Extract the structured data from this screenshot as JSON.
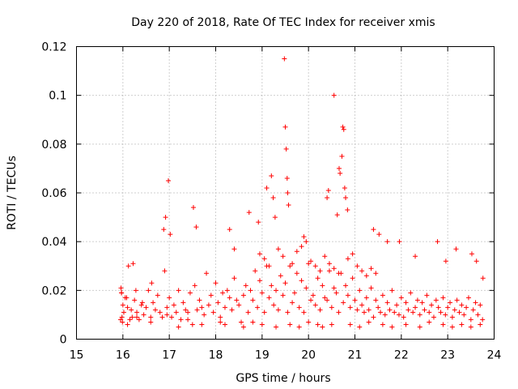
{
  "chart_data": {
    "type": "scatter",
    "title": "Day 220 of 2018, Rate Of TEC Index for receiver xmis",
    "xlabel": "GPS time / hours",
    "ylabel": "ROTI / TECUs",
    "xlim": [
      15,
      24
    ],
    "ylim": [
      0,
      0.12
    ],
    "xticks": [
      "15",
      "16",
      "17",
      "18",
      "19",
      "20",
      "21",
      "22",
      "23",
      "24"
    ],
    "yticks": [
      "0",
      "0.02",
      "0.04",
      "0.06",
      "0.08",
      "0.1",
      "0.12"
    ],
    "grid": true,
    "marker": "+",
    "color": "#ff0000",
    "series": [
      {
        "name": "ROTI",
        "x": [
          15.95,
          15.96,
          15.97,
          15.98,
          15.99,
          16.0,
          16.02,
          16.05,
          16.1,
          16.12,
          16.15,
          16.18,
          16.2,
          16.25,
          16.3,
          16.35,
          16.4,
          16.45,
          16.5,
          16.55,
          16.6,
          16.65,
          16.7,
          16.75,
          16.8,
          16.85,
          16.9,
          16.95,
          17.0,
          17.05,
          17.1,
          17.15,
          17.2,
          17.25,
          17.3,
          17.35,
          17.4,
          17.45,
          17.5,
          17.55,
          17.6,
          17.65,
          17.7,
          17.75,
          17.8,
          17.85,
          17.9,
          17.95,
          18.0,
          18.05,
          18.1,
          18.15,
          18.2,
          18.25,
          18.3,
          18.35,
          18.4,
          18.45,
          18.5,
          18.55,
          18.6,
          18.65,
          18.7,
          18.75,
          18.8,
          18.85,
          18.9,
          18.95,
          19.0,
          19.05,
          19.1,
          19.15,
          19.2,
          19.25,
          19.3,
          19.35,
          19.4,
          19.45,
          19.5,
          19.55,
          19.6,
          19.65,
          19.7,
          19.75,
          19.8,
          19.85,
          19.9,
          19.95,
          20.0,
          20.05,
          20.1,
          20.15,
          20.2,
          20.25,
          20.3,
          20.35,
          20.4,
          20.45,
          20.5,
          20.55,
          20.6,
          20.65,
          20.7,
          20.75,
          20.8,
          20.85,
          20.9,
          20.95,
          21.0,
          21.05,
          21.1,
          21.15,
          21.2,
          21.25,
          21.3,
          21.35,
          21.4,
          21.45,
          21.5,
          21.55,
          21.6,
          21.65,
          21.7,
          21.75,
          21.8,
          21.85,
          21.9,
          21.95,
          22.0,
          22.05,
          22.1,
          22.15,
          22.2,
          22.25,
          22.3,
          22.35,
          22.4,
          22.45,
          22.5,
          22.55,
          22.6,
          22.65,
          22.7,
          22.75,
          22.8,
          22.85,
          22.9,
          22.95,
          23.0,
          23.05,
          23.1,
          23.15,
          23.2,
          23.25,
          23.3,
          23.35,
          23.4,
          23.45,
          23.5,
          23.55,
          23.6,
          23.65,
          23.7,
          23.75,
          15.97,
          16.08,
          16.22,
          16.28,
          16.42,
          16.62,
          16.88,
          16.92,
          16.98,
          17.02,
          17.52,
          17.58,
          18.3,
          18.4,
          18.72,
          18.92,
          19.1,
          19.2,
          19.24,
          19.28,
          19.48,
          19.5,
          19.52,
          19.54,
          19.55,
          19.57,
          19.9,
          19.95,
          20.4,
          20.43,
          20.55,
          20.62,
          20.66,
          20.68,
          20.72,
          20.74,
          20.76,
          20.78,
          20.8,
          20.84,
          21.4,
          21.52,
          21.7,
          21.96,
          22.3,
          22.78,
          22.96,
          23.18,
          23.52,
          23.62,
          23.76,
          16.1,
          16.3,
          16.6,
          16.95,
          17.2,
          17.4,
          17.7,
          18.1,
          18.2,
          18.6,
          18.8,
          19.0,
          19.3,
          19.6,
          19.8,
          20.0,
          20.2,
          20.3,
          20.5,
          20.9,
          21.1,
          21.3,
          21.6,
          21.8,
          22.1,
          22.4,
          22.6,
          22.9,
          23.1,
          23.3,
          23.5,
          23.7,
          18.95,
          19.05,
          19.15,
          19.35,
          19.45,
          19.65,
          19.75,
          19.85,
          20.05,
          20.15,
          20.25,
          20.35,
          20.45,
          20.55,
          20.65,
          20.85,
          20.95,
          21.05,
          21.15,
          21.25,
          21.35,
          21.45
        ],
        "y": [
          0.008,
          0.021,
          0.019,
          0.009,
          0.007,
          0.014,
          0.011,
          0.017,
          0.013,
          0.03,
          0.008,
          0.012,
          0.009,
          0.016,
          0.011,
          0.008,
          0.014,
          0.01,
          0.013,
          0.02,
          0.009,
          0.015,
          0.012,
          0.018,
          0.011,
          0.009,
          0.028,
          0.013,
          0.017,
          0.009,
          0.014,
          0.011,
          0.02,
          0.008,
          0.015,
          0.012,
          0.011,
          0.019,
          0.006,
          0.022,
          0.012,
          0.016,
          0.013,
          0.01,
          0.027,
          0.014,
          0.018,
          0.011,
          0.023,
          0.015,
          0.009,
          0.019,
          0.013,
          0.02,
          0.017,
          0.012,
          0.025,
          0.016,
          0.014,
          0.007,
          0.018,
          0.022,
          0.011,
          0.02,
          0.016,
          0.028,
          0.013,
          0.024,
          0.019,
          0.011,
          0.03,
          0.017,
          0.022,
          0.014,
          0.02,
          0.012,
          0.026,
          0.018,
          0.023,
          0.011,
          0.03,
          0.015,
          0.019,
          0.027,
          0.013,
          0.024,
          0.011,
          0.021,
          0.031,
          0.016,
          0.018,
          0.014,
          0.025,
          0.012,
          0.022,
          0.017,
          0.016,
          0.028,
          0.013,
          0.021,
          0.019,
          0.011,
          0.027,
          0.015,
          0.022,
          0.018,
          0.013,
          0.025,
          0.016,
          0.012,
          0.02,
          0.014,
          0.011,
          0.017,
          0.012,
          0.021,
          0.009,
          0.016,
          0.013,
          0.011,
          0.018,
          0.01,
          0.015,
          0.012,
          0.02,
          0.011,
          0.014,
          0.01,
          0.017,
          0.009,
          0.015,
          0.012,
          0.019,
          0.011,
          0.013,
          0.016,
          0.01,
          0.015,
          0.012,
          0.018,
          0.011,
          0.014,
          0.009,
          0.016,
          0.013,
          0.011,
          0.017,
          0.01,
          0.013,
          0.015,
          0.009,
          0.012,
          0.016,
          0.011,
          0.014,
          0.01,
          0.013,
          0.017,
          0.008,
          0.012,
          0.015,
          0.01,
          0.014,
          0.008,
          0.019,
          0.017,
          0.031,
          0.02,
          0.015,
          0.023,
          0.045,
          0.05,
          0.065,
          0.043,
          0.054,
          0.046,
          0.045,
          0.037,
          0.052,
          0.048,
          0.062,
          0.067,
          0.058,
          0.05,
          0.115,
          0.087,
          0.078,
          0.066,
          0.06,
          0.055,
          0.042,
          0.04,
          0.058,
          0.061,
          0.1,
          0.051,
          0.07,
          0.068,
          0.075,
          0.087,
          0.086,
          0.062,
          0.058,
          0.053,
          0.045,
          0.043,
          0.04,
          0.04,
          0.034,
          0.04,
          0.032,
          0.037,
          0.035,
          0.032,
          0.025,
          0.006,
          0.009,
          0.007,
          0.01,
          0.005,
          0.008,
          0.006,
          0.007,
          0.006,
          0.005,
          0.007,
          0.006,
          0.005,
          0.006,
          0.005,
          0.007,
          0.006,
          0.005,
          0.006,
          0.006,
          0.005,
          0.007,
          0.006,
          0.005,
          0.006,
          0.005,
          0.007,
          0.006,
          0.005,
          0.006,
          0.005,
          0.006,
          0.035,
          0.033,
          0.03,
          0.037,
          0.034,
          0.031,
          0.036,
          0.038,
          0.032,
          0.03,
          0.028,
          0.034,
          0.031,
          0.029,
          0.027,
          0.033,
          0.035,
          0.03,
          0.028,
          0.026,
          0.029,
          0.027
        ]
      }
    ]
  }
}
